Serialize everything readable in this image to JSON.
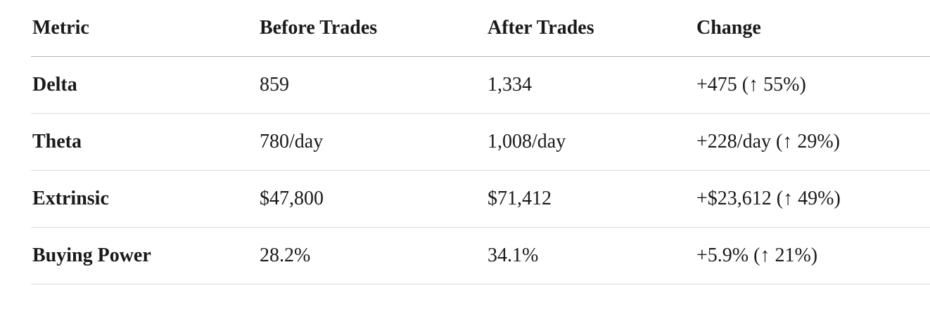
{
  "table": {
    "header": [
      "Metric",
      "Before Trades",
      "After Trades",
      "Change"
    ],
    "rows": [
      [
        "Delta",
        "859",
        "1,334",
        "+475 (↑ 55%)"
      ],
      [
        "Theta",
        "780/day",
        "1,008/day",
        "+228/day (↑ 29%)"
      ],
      [
        "Extrinsic",
        "$47,800",
        "$71,412",
        "+$23,612 (↑ 49%)"
      ],
      [
        "Buying Power",
        "28.2%",
        "34.1%",
        "+5.9% (↑ 21%)"
      ]
    ]
  }
}
